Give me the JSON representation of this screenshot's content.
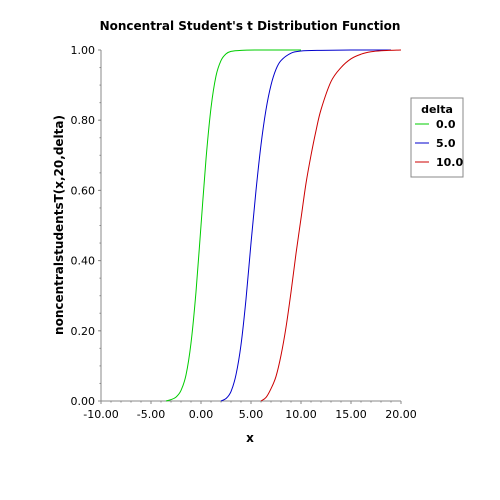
{
  "chart_data": {
    "type": "line",
    "title": "Noncentral Student's t Distribution Function",
    "xlabel": "x",
    "ylabel": "noncentralstudentsT(x,20,delta)",
    "xlim": [
      -10,
      20
    ],
    "ylim": [
      0,
      1
    ],
    "x_ticks": [
      "-10.00",
      "-5.00",
      "0.00",
      "5.00",
      "10.00",
      "15.00",
      "20.00"
    ],
    "y_ticks": [
      "0.00",
      "0.20",
      "0.40",
      "0.60",
      "0.80",
      "1.00"
    ],
    "legend": {
      "title": "delta",
      "placement": "right"
    },
    "series": [
      {
        "name": "0.0",
        "color": "#00cc00",
        "x": [
          -3.5,
          -3.0,
          -2.5,
          -2.0,
          -1.5,
          -1.0,
          -0.5,
          0.0,
          0.5,
          1.0,
          1.5,
          2.0,
          2.5,
          3.0,
          4.0,
          6.0,
          10.0
        ],
        "y": [
          0.0,
          0.004,
          0.011,
          0.03,
          0.074,
          0.165,
          0.311,
          0.5,
          0.689,
          0.835,
          0.926,
          0.97,
          0.989,
          0.996,
          0.999,
          1.0,
          1.0
        ]
      },
      {
        "name": "5.0",
        "color": "#0000cc",
        "x": [
          2.0,
          2.5,
          3.0,
          3.5,
          4.0,
          4.5,
          5.0,
          5.5,
          6.0,
          6.5,
          7.0,
          7.5,
          8.0,
          9.0,
          10.0,
          12.0,
          15.0,
          19.0
        ],
        "y": [
          0.0,
          0.007,
          0.027,
          0.075,
          0.16,
          0.29,
          0.45,
          0.6,
          0.73,
          0.83,
          0.9,
          0.945,
          0.97,
          0.991,
          0.997,
          0.999,
          1.0,
          1.0
        ]
      },
      {
        "name": "10.0",
        "color": "#cc0000",
        "x": [
          6.0,
          6.5,
          7.0,
          7.5,
          8.0,
          8.5,
          9.0,
          9.5,
          10.0,
          10.5,
          11.0,
          11.5,
          12.0,
          13.0,
          14.0,
          15.0,
          16.0,
          17.0,
          18.0,
          20.0
        ],
        "y": [
          0.0,
          0.01,
          0.035,
          0.07,
          0.13,
          0.21,
          0.31,
          0.42,
          0.52,
          0.62,
          0.7,
          0.77,
          0.83,
          0.91,
          0.95,
          0.975,
          0.988,
          0.995,
          0.998,
          1.0
        ]
      }
    ]
  }
}
